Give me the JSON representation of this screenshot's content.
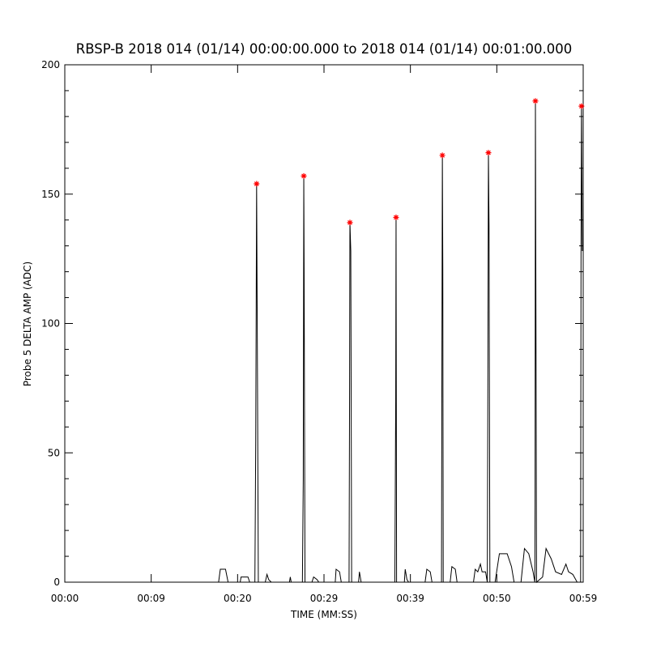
{
  "chart_data": {
    "type": "line",
    "title": "RBSP-B 2018 014 (01/14) 00:00:00.000 to 2018 014 (01/14) 00:01:00.000",
    "x_label": "TIME (MM:SS)",
    "y_label": "Probe 5 DELTA AMP (ADC)",
    "xlim": [
      0,
      60
    ],
    "xticks": [
      {
        "value": 0,
        "label": "00:00"
      },
      {
        "value": 10,
        "label": "00:09"
      },
      {
        "value": 20,
        "label": "00:20"
      },
      {
        "value": 30,
        "label": "00:29"
      },
      {
        "value": 40,
        "label": "00:39"
      },
      {
        "value": 50,
        "label": "00:50"
      },
      {
        "value": 60,
        "label": "00:59"
      }
    ],
    "ylim": [
      0,
      200
    ],
    "yticks": [
      0,
      50,
      100,
      150,
      200
    ],
    "yminorticks": [
      10,
      20,
      30,
      40,
      60,
      70,
      80,
      90,
      110,
      120,
      130,
      140,
      160,
      170,
      180,
      190
    ],
    "series": [
      {
        "type": "line",
        "color": "#000000",
        "x": [
          0,
          17.8,
          18.0,
          18.6,
          18.9,
          20.3,
          20.4,
          21.2,
          21.4,
          22.0,
          22.1,
          22.2,
          22.3,
          22.4,
          23.2,
          23.4,
          23.6,
          23.9,
          26.0,
          26.1,
          26.2,
          27.5,
          27.6,
          27.66,
          27.7,
          27.8,
          28.6,
          28.8,
          29.2,
          29.4,
          31.3,
          31.4,
          31.8,
          32.0,
          32.9,
          32.95,
          33.0,
          33.1,
          33.2,
          34.0,
          34.1,
          34.3,
          38.2,
          38.3,
          38.34,
          38.4,
          39.3,
          39.4,
          39.6,
          39.8,
          41.7,
          41.9,
          42.3,
          42.5,
          43.6,
          43.65,
          43.7,
          43.75,
          43.8,
          44.6,
          44.8,
          45.2,
          45.4,
          47.3,
          47.5,
          47.8,
          48.1,
          48.3,
          48.7,
          48.9,
          48.95,
          49.03,
          49.1,
          49.2,
          49.8,
          50.3,
          51.2,
          51.7,
          52.0,
          52.8,
          53.2,
          53.7,
          54.2,
          54.4,
          54.43,
          54.47,
          54.52,
          54.6,
          55.3,
          55.7,
          56.3,
          56.8,
          57.5,
          58.0,
          58.3,
          58.8,
          59.3,
          59.7,
          59.75,
          59.8,
          59.9
        ],
        "values": [
          0,
          0,
          5,
          5,
          0,
          0,
          2,
          2,
          0,
          0,
          55,
          154,
          80,
          0,
          0,
          3,
          1,
          0,
          0,
          2,
          0,
          0,
          40,
          157,
          120,
          0,
          0,
          2,
          1,
          0,
          0,
          5,
          4,
          0,
          0,
          60,
          139,
          128,
          0,
          0,
          4,
          0,
          0,
          70,
          141,
          0,
          0,
          5,
          1,
          0,
          0,
          5,
          4,
          0,
          0,
          90,
          165,
          122,
          0,
          0,
          6,
          5,
          0,
          0,
          5,
          4,
          7,
          4,
          4,
          0,
          55,
          166,
          138,
          0,
          0,
          11,
          11,
          6,
          0,
          0,
          13,
          11,
          4,
          0,
          30,
          186,
          117,
          0,
          2,
          13,
          9,
          4,
          3,
          7,
          4,
          3,
          0,
          0,
          128,
          184,
          128
        ]
      },
      {
        "type": "scatter",
        "color": "#ff0000",
        "marker": "*",
        "x": [
          22.2,
          27.66,
          33.0,
          38.34,
          43.7,
          49.03,
          54.47,
          59.8
        ],
        "values": [
          154,
          157,
          139,
          141,
          165,
          166,
          186,
          184
        ]
      }
    ]
  }
}
